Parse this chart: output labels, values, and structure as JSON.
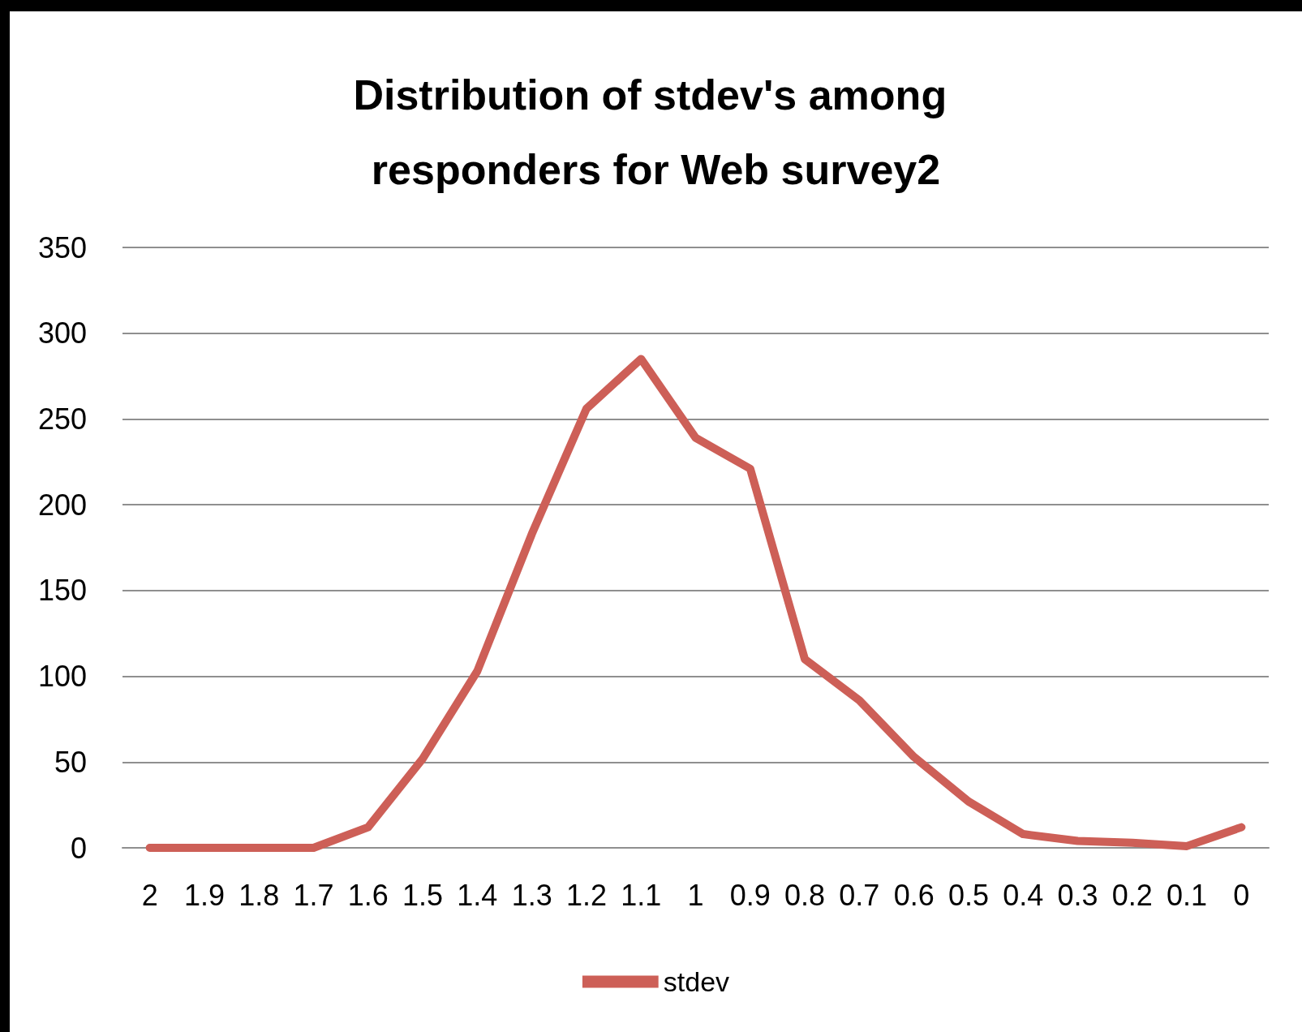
{
  "chart_data": {
    "type": "line",
    "title": "Distribution of stdev's among responders for Web survey2",
    "categories": [
      "2",
      "1.9",
      "1.8",
      "1.7",
      "1.6",
      "1.5",
      "1.4",
      "1.3",
      "1.2",
      "1.1",
      "1",
      "0.9",
      "0.8",
      "0.7",
      "0.6",
      "0.5",
      "0.4",
      "0.3",
      "0.2",
      "0.1",
      "0"
    ],
    "series": [
      {
        "name": "stdev",
        "color": "#cd5f57",
        "values": [
          0,
          0,
          0,
          0,
          12,
          52,
          103,
          183,
          256,
          285,
          239,
          221,
          110,
          86,
          53,
          27,
          8,
          4,
          3,
          1,
          12
        ]
      }
    ],
    "ylim": [
      0,
      350
    ],
    "yticks": [
      0,
      50,
      100,
      150,
      200,
      250,
      300,
      350
    ],
    "grid": "y",
    "legend": "bottom",
    "marker": "none",
    "line_style": "solid"
  }
}
